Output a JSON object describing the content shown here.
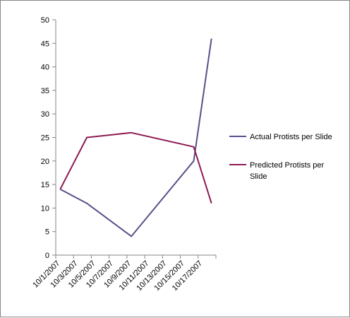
{
  "chart_data": {
    "type": "line",
    "x": [
      "10/1/2007",
      "10/4/2007",
      "10/9/2007",
      "10/16/2007",
      "10/18/2007"
    ],
    "x_tick_labels": [
      "10/1/2007",
      "10/3/2007",
      "10/5/2007",
      "10/7/2007",
      "10/9/2007",
      "10/11/2007",
      "10/13/2007",
      "10/15/2007",
      "10/17/2007"
    ],
    "xlim": [
      "10/1/2007",
      "10/18/2007"
    ],
    "ylim": [
      0,
      50
    ],
    "y_ticks": [
      0,
      5,
      10,
      15,
      20,
      25,
      30,
      35,
      40,
      45,
      50
    ],
    "grid": false,
    "legend_position": "right",
    "series": [
      {
        "name": "Actual Protists per Slide",
        "color": "#5b4e8a",
        "values": [
          14,
          11,
          4,
          20,
          46
        ]
      },
      {
        "name": "Predicted Protists per Slide",
        "color": "#8e1a53",
        "values": [
          14,
          25,
          26,
          23,
          11
        ]
      }
    ]
  }
}
